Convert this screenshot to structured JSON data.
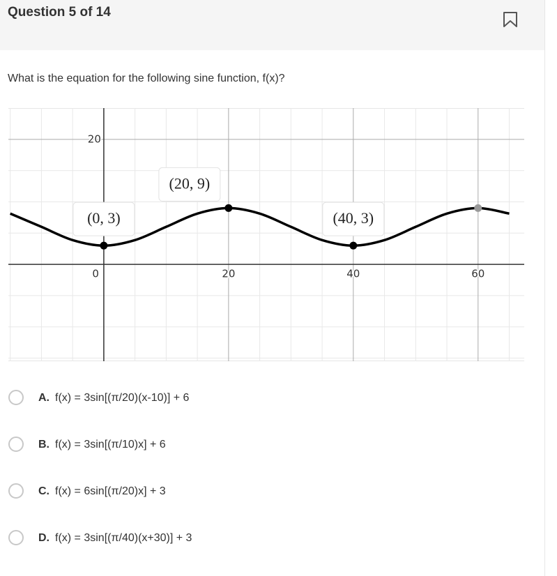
{
  "header": {
    "title": "Question 5 of 14"
  },
  "question": "What is the equation for the following sine function, f(x)?",
  "chart_data": {
    "type": "line",
    "x": [
      -15,
      -10,
      -5,
      0,
      5,
      10,
      15,
      20,
      25,
      30,
      35,
      40,
      45,
      50,
      55,
      60,
      65
    ],
    "values": [
      8.12,
      6,
      3.88,
      3,
      3.88,
      6,
      8.12,
      9,
      8.12,
      6,
      3.88,
      3,
      3.88,
      6,
      8.12,
      9,
      8.12
    ],
    "color": "#000000",
    "xlim": [
      -15.3,
      67.4
    ],
    "ylim": [
      -15.5,
      25
    ],
    "xticks": [
      0,
      20,
      40,
      60
    ],
    "yticks": [
      20
    ],
    "x_minor_grid": [
      -15,
      -10,
      -5,
      5,
      10,
      15,
      25,
      30,
      35,
      45,
      50,
      55,
      65
    ],
    "y_minor_grid": [
      -15,
      -10,
      -5,
      5,
      10,
      15
    ],
    "grid": true,
    "points": [
      {
        "x": 0,
        "y": 3,
        "label": "(0, 3)",
        "color": "#000000"
      },
      {
        "x": 20,
        "y": 9,
        "label": "(20, 9)",
        "color": "#000000"
      },
      {
        "x": 40,
        "y": 3,
        "label": "(40, 3)",
        "color": "#000000"
      },
      {
        "x": 60,
        "y": 9,
        "color": "#999999"
      }
    ]
  },
  "options": [
    {
      "letter": "A.",
      "text": "f(x) = 3sin[(π/20)(x-10)] + 6"
    },
    {
      "letter": "B.",
      "text": "f(x) = 3sin[(π/10)x] + 6"
    },
    {
      "letter": "C.",
      "text": "f(x) = 6sin[(π/20)x] + 3"
    },
    {
      "letter": "D.",
      "text": "f(x) = 3sin[(π/40)(x+30)] + 3"
    }
  ]
}
